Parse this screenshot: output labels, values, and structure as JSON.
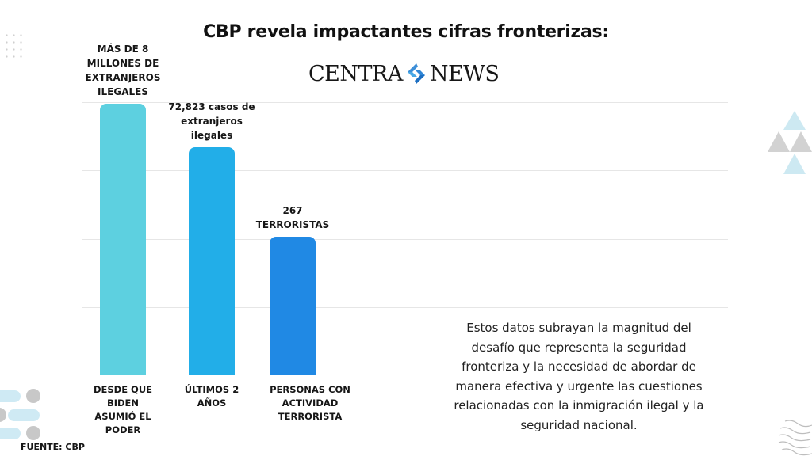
{
  "title": "CBP revela impactantes cifras fronterizas:",
  "logo": {
    "left": "CENTRA",
    "right": "NEWS",
    "icon": "centranews-logo-icon"
  },
  "chart_data": {
    "type": "bar",
    "title": "CBP revela impactantes cifras fronterizas:",
    "xlabel": "",
    "ylabel": "",
    "grid": true,
    "note": "Bars are illustrative (not to scale); values shown as data labels",
    "categories": [
      "DESDE QUE BIDEN ASUMIÓ EL PODER",
      "ÚLTIMOS 2 AÑOS",
      "PERSONAS CON ACTIVIDAD TERRORISTA"
    ],
    "category_lines": [
      [
        "DESDE QUE",
        "BIDEN",
        "ASUMIÓ EL",
        "PODER"
      ],
      [
        "ÚLTIMOS 2",
        "AÑOS"
      ],
      [
        "PERSONAS CON",
        "ACTIVIDAD TERRORISTA"
      ]
    ],
    "values": [
      8000000,
      72823,
      267
    ],
    "display_level": [
      100,
      84,
      51
    ],
    "data_labels": [
      [
        "MÁS DE 8",
        "MILLONES DE",
        "EXTRANJEROS",
        "ILEGALES"
      ],
      [
        "72,823 casos de",
        "extranjeros",
        "ilegales"
      ],
      [
        "267",
        "TERRORISTAS"
      ]
    ],
    "colors": [
      "#5dd0e0",
      "#22aee8",
      "#2089e4"
    ]
  },
  "description": "Estos datos subrayan la magnitud del desafío que representa la seguridad fronteriza y la necesidad de abordar de manera efectiva y urgente las cuestiones relacionadas con la inmigración ilegal y la seguridad nacional.",
  "source": "FUENTE: CBP"
}
